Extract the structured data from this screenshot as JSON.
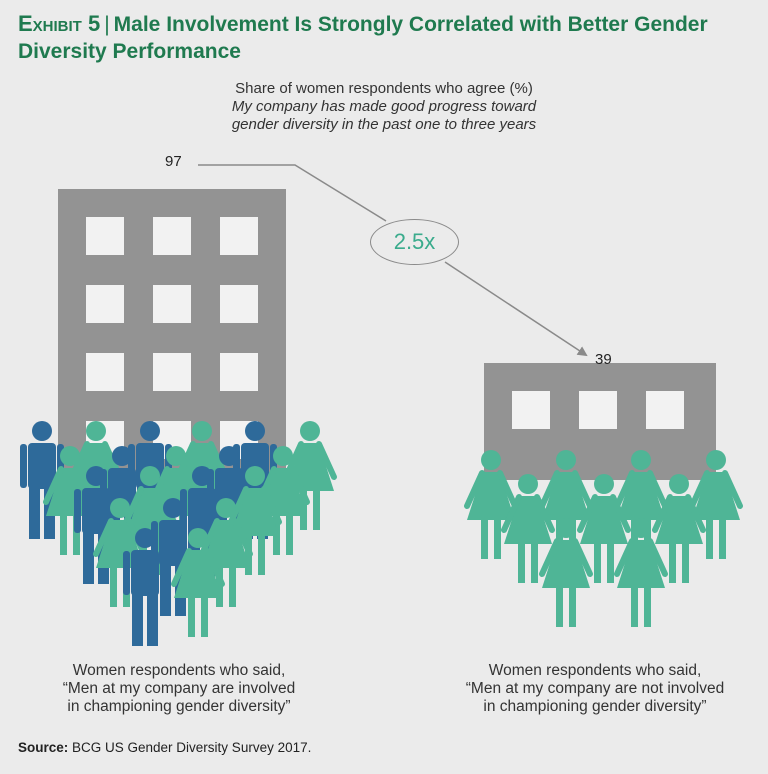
{
  "header": {
    "exhibit": "Exhibit 5",
    "separator": "|",
    "title": "Male Involvement Is Strongly Correlated with Better Gender Diversity Performance"
  },
  "chart_data": {
    "type": "bar",
    "title": "Share of women respondents who agree (%)",
    "subtitle": "My company has made good progress toward gender diversity in the past one to three years",
    "categories": [
      "Women respondents who said, “Men at my company are involved in championing gender diversity”",
      "Women respondents who said, “Men at my company are not involved in championing gender diversity”"
    ],
    "values": [
      97,
      39
    ],
    "value_labels": [
      "97",
      "39"
    ],
    "annotation": "2.5x",
    "ylim": [
      0,
      100
    ]
  },
  "captions": {
    "left_line1": "Women respondents who said,",
    "left_line2": "“Men at my company are involved",
    "left_line3": "in championing gender diversity”",
    "right_line1": "Women respondents who said,",
    "right_line2": "“Men at my company are not involved",
    "right_line3": "in championing gender diversity”"
  },
  "source": {
    "label": "Source:",
    "text": " BCG US Gender Diversity Survey 2017."
  },
  "colors": {
    "title": "#1f7a4f",
    "building": "#939393",
    "window": "#f2f2f2",
    "man": "#2e6a9a",
    "woman": "#4fb596",
    "ratio_text": "#3aab8c",
    "background": "#ebebeb"
  }
}
